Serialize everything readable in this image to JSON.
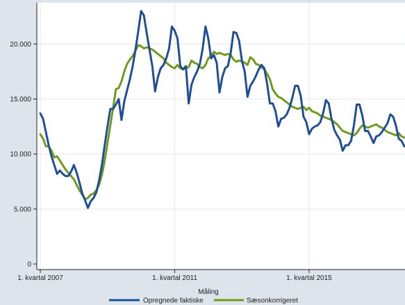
{
  "chart_data": {
    "type": "line",
    "title": "",
    "xlabel": "",
    "ylabel": "",
    "ylim": [
      0,
      23500
    ],
    "x_tick_labels": [
      {
        "label": "1. kvartal 2007",
        "t": 0
      },
      {
        "label": "1. kvartal 2011",
        "t": 48
      },
      {
        "label": "1. kvartal 2015",
        "t": 96
      }
    ],
    "y_ticks": [
      {
        "value": 0,
        "label": "0"
      },
      {
        "value": 5000,
        "label": "5.000"
      },
      {
        "value": 10000,
        "label": "10.000"
      },
      {
        "value": 15000,
        "label": "15.000"
      },
      {
        "value": 20000,
        "label": "20.000"
      }
    ],
    "grid": true,
    "legend": {
      "title": "Måling",
      "placement": "bottom"
    },
    "series": [
      {
        "name": "Opregnede faktiske",
        "color": "#1f4e99",
        "values": [
          13700,
          13200,
          12000,
          10800,
          9800,
          9000,
          8200,
          8500,
          8200,
          8000,
          8000,
          8400,
          9000,
          8300,
          7400,
          6400,
          5800,
          5100,
          5700,
          6000,
          6500,
          7600,
          9000,
          10800,
          12500,
          14100,
          14100,
          14500,
          15000,
          13100,
          14800,
          15800,
          16800,
          18000,
          19500,
          21200,
          23000,
          22600,
          21000,
          19500,
          18000,
          15700,
          17000,
          17800,
          18100,
          18700,
          19600,
          21600,
          21200,
          20500,
          18000,
          17700,
          18000,
          14600,
          16300,
          17000,
          17500,
          18200,
          19600,
          21600,
          20500,
          18700,
          19000,
          18300,
          15600,
          17000,
          17800,
          18000,
          19200,
          21100,
          21000,
          20300,
          18500,
          17500,
          15200,
          16200,
          16600,
          17100,
          17700,
          18100,
          17800,
          16400,
          14600,
          14600,
          13900,
          12500,
          13200,
          13300,
          13600,
          14200,
          15100,
          16200,
          16200,
          15300,
          13400,
          12900,
          11800,
          12300,
          12500,
          12600,
          12900,
          13700,
          14900,
          14600,
          13200,
          12200,
          11700,
          11300,
          10300,
          10800,
          10800,
          11200,
          12600,
          14500,
          14500,
          13500,
          12100,
          12100,
          11600,
          11000,
          11600,
          11700,
          12000,
          12400,
          12800,
          13600,
          13400,
          12600,
          11400,
          11200,
          10700
        ]
      },
      {
        "name": "Sæsonkorrigeret",
        "color": "#6f9a1c",
        "values": [
          11800,
          11400,
          10700,
          10700,
          10300,
          9700,
          9800,
          9400,
          9000,
          8600,
          8300,
          8000,
          7700,
          7200,
          6700,
          6300,
          5900,
          6000,
          6300,
          6400,
          6700,
          7200,
          8100,
          9400,
          11000,
          12600,
          14200,
          15900,
          16000,
          16600,
          17500,
          18200,
          18600,
          18900,
          19400,
          19900,
          19800,
          19600,
          19700,
          19600,
          19500,
          19300,
          19100,
          18900,
          18700,
          18300,
          18100,
          17900,
          17800,
          18100,
          17800,
          17700,
          17800,
          17900,
          18500,
          18300,
          18200,
          17900,
          17800,
          18100,
          18700,
          18900,
          19300,
          19100,
          19200,
          19100,
          19000,
          19100,
          19000,
          18600,
          18400,
          18500,
          18400,
          18300,
          18100,
          18800,
          18600,
          18200,
          18100,
          17900,
          17700,
          17300,
          16800,
          15900,
          15500,
          15200,
          15100,
          14900,
          14700,
          14500,
          14300,
          14200,
          14100,
          14200,
          14300,
          14000,
          14200,
          13900,
          13800,
          13700,
          13500,
          13400,
          13300,
          13200,
          13100,
          12900,
          12700,
          12400,
          12100,
          12000,
          11900,
          11800,
          11700,
          11900,
          12300,
          12600,
          12500,
          12400,
          12500,
          12600,
          12700,
          12500,
          12400,
          12200,
          12000,
          11900,
          11800,
          11700,
          11900,
          11600,
          11500
        ]
      }
    ]
  }
}
